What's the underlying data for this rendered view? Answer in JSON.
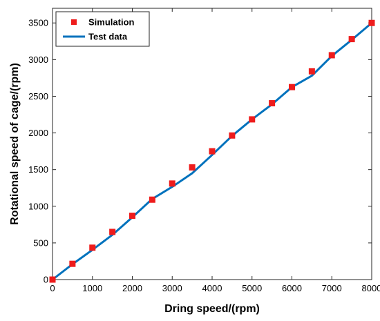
{
  "chart_data": {
    "type": "line",
    "title": "",
    "xlabel": "Dring speed/(rpm)",
    "ylabel": "Rotational speed of cage/(rpm)",
    "xlim": [
      0,
      8000
    ],
    "ylim": [
      0,
      3700
    ],
    "xticks": [
      0,
      1000,
      2000,
      3000,
      4000,
      5000,
      6000,
      7000,
      8000
    ],
    "yticks": [
      0,
      500,
      1000,
      1500,
      2000,
      2500,
      3000,
      3500
    ],
    "grid": false,
    "legend_position": "top-left",
    "series": [
      {
        "name": "Simulation",
        "style": "markers",
        "color": "#ee1c1c",
        "x": [
          0,
          500,
          1000,
          1500,
          2000,
          2500,
          3000,
          3500,
          4000,
          4500,
          5000,
          5500,
          6000,
          6500,
          7000,
          7500,
          8000
        ],
        "y": [
          0,
          215,
          435,
          650,
          870,
          1090,
          1310,
          1530,
          1750,
          1965,
          2185,
          2405,
          2625,
          2840,
          3060,
          3280,
          3500
        ]
      },
      {
        "name": "Test data",
        "style": "line",
        "color": "#0072bd",
        "x": [
          0,
          500,
          1000,
          1500,
          2000,
          2500,
          3000,
          3500,
          4000,
          4500,
          5000,
          5500,
          6000,
          6500,
          7000,
          7500,
          8000
        ],
        "y": [
          0,
          210,
          405,
          610,
          850,
          1100,
          1265,
          1450,
          1700,
          1960,
          2185,
          2390,
          2625,
          2780,
          3050,
          3270,
          3500
        ]
      }
    ]
  }
}
